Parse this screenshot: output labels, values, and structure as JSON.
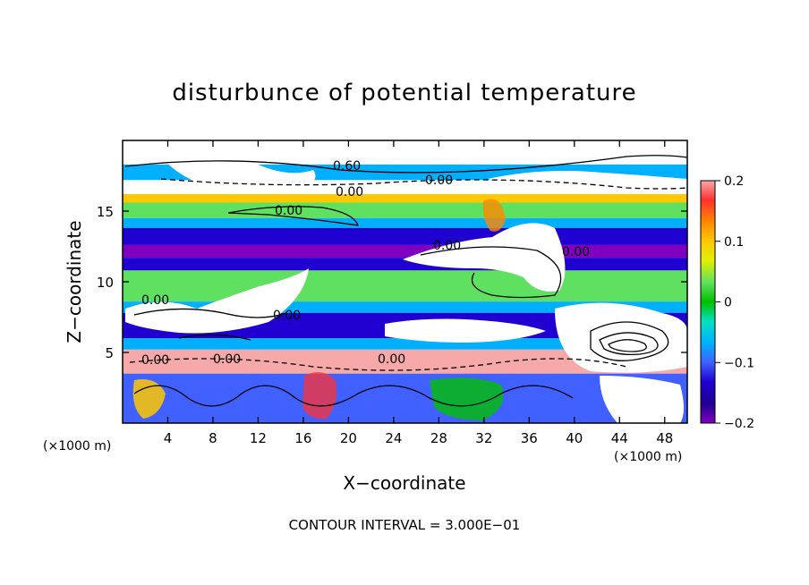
{
  "chart_data": {
    "type": "heatmap",
    "title": "disturbunce of potential temperature",
    "xlabel": "X−coordinate",
    "ylabel": "Z−coordinate",
    "x_unit_left": "(×1000 m)",
    "x_unit_right": "(×1000 m)",
    "xlim": [
      0,
      50
    ],
    "ylim": [
      0,
      20
    ],
    "xticks": [
      4,
      8,
      12,
      16,
      20,
      24,
      28,
      32,
      36,
      40,
      44,
      48
    ],
    "yticks": [
      5,
      10,
      15
    ],
    "colorbar": {
      "range": [
        -0.2,
        0.2
      ],
      "tick_labels": [
        "0.2",
        "0.1",
        "0",
        "−0.1",
        "−0.2"
      ],
      "tick_values": [
        0.2,
        0.1,
        0,
        -0.1,
        -0.2
      ],
      "colors": [
        "#f7a8a8",
        "#ff3030",
        "#ff8800",
        "#ffc800",
        "#e0f000",
        "#60e060",
        "#00c000",
        "#00e0c0",
        "#00b0ff",
        "#4060ff",
        "#2000d0",
        "#200090",
        "#8000c0"
      ]
    },
    "contour_labels": [
      "0.60",
      "0.00",
      "0.00",
      "0.00",
      "0.00",
      "0.00",
      "0.00",
      "0.00",
      "0.00",
      "0.00",
      "0.00"
    ],
    "footer": "CONTOUR INTERVAL = 3.000E−01",
    "fields": [
      {
        "x_start": 0,
        "x_end": 50,
        "z_start": 0,
        "z_end": 20,
        "value": 0.2
      },
      {
        "x_start": 0,
        "x_end": 50,
        "z_start": 17.2,
        "z_end": 18.3,
        "value": -0.05
      },
      {
        "x_start": 0,
        "x_end": 50,
        "z_start": 15.6,
        "z_end": 16.2,
        "value": 0.1
      },
      {
        "x_start": 0,
        "x_end": 50,
        "z_start": 14.5,
        "z_end": 15.6,
        "value": 0.02
      },
      {
        "x_start": 0,
        "x_end": 50,
        "z_start": 13.8,
        "z_end": 14.5,
        "value": -0.08
      },
      {
        "x_start": 0,
        "x_end": 50,
        "z_start": 12.6,
        "z_end": 13.8,
        "value": -0.15
      },
      {
        "x_start": 0,
        "x_end": 50,
        "z_start": 11.7,
        "z_end": 12.6,
        "value": -0.2
      },
      {
        "x_start": 0,
        "x_end": 50,
        "z_start": 10.8,
        "z_end": 11.7,
        "value": -0.12
      },
      {
        "x_start": 0,
        "x_end": 50,
        "z_start": 8.6,
        "z_end": 10.8,
        "value": 0.02
      },
      {
        "x_start": 0,
        "x_end": 50,
        "z_start": 7.8,
        "z_end": 8.6,
        "value": -0.07
      },
      {
        "x_start": 0,
        "x_end": 50,
        "z_start": 6.0,
        "z_end": 7.8,
        "value": -0.15
      },
      {
        "x_start": 0,
        "x_end": 50,
        "z_start": 5.2,
        "z_end": 6.0,
        "value": -0.08
      },
      {
        "x_start": 0,
        "x_end": 50,
        "z_start": 3.5,
        "z_end": 5.2,
        "value": 0.2
      },
      {
        "x_start": 0,
        "x_end": 50,
        "z_start": 0,
        "z_end": 3.5,
        "value": -0.1
      }
    ]
  }
}
